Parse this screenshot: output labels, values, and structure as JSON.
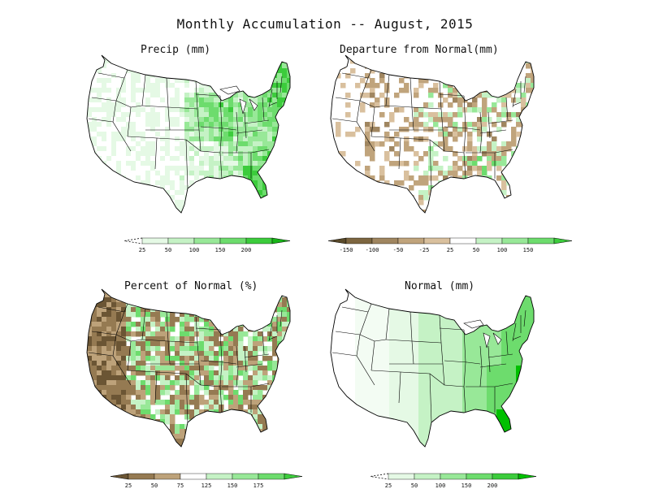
{
  "title": "Monthly Accumulation -- August, 2015",
  "panels": [
    {
      "id": "precip",
      "title": "Precip (mm)",
      "colorbar": {
        "labels": [
          "25",
          "50",
          "100",
          "150",
          "200"
        ],
        "colors": [
          "#ffffff",
          "#e5f9e5",
          "#c5f2c5",
          "#98e898",
          "#6ddc6d",
          "#3ccc3c",
          "#18b418"
        ],
        "left_arrow": "dashed"
      }
    },
    {
      "id": "departure",
      "title": "Departure from Normal(mm)",
      "colorbar": {
        "labels": [
          "-150",
          "-100",
          "-50",
          "-25",
          "25",
          "50",
          "100",
          "150"
        ],
        "colors": [
          "#5a4a2a",
          "#7d6640",
          "#a08660",
          "#c0a47c",
          "#d9c09e",
          "#ffffff",
          "#c5f2c5",
          "#98e898",
          "#6ddc6d",
          "#3ccc3c"
        ]
      }
    },
    {
      "id": "percent",
      "title": "Percent of Normal (%)",
      "colorbar": {
        "labels": [
          "25",
          "50",
          "75",
          "125",
          "150",
          "175"
        ],
        "colors": [
          "#6b5534",
          "#957a52",
          "#bda27a",
          "#ffffff",
          "#c5f2c5",
          "#98e898",
          "#6ddc6d",
          "#3ccc3c"
        ]
      }
    },
    {
      "id": "normal",
      "title": "Normal (mm)",
      "colorbar": {
        "labels": [
          "25",
          "50",
          "100",
          "150",
          "200"
        ],
        "colors": [
          "#ffffff",
          "#e5f9e5",
          "#c5f2c5",
          "#98e898",
          "#6ddc6d",
          "#3ccc3c",
          "#00c000"
        ],
        "left_arrow": "dashed"
      }
    }
  ]
}
